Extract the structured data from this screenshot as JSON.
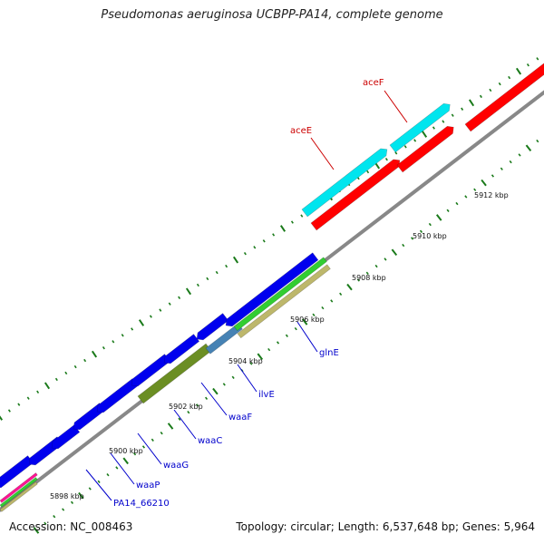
{
  "title": "Pseudomonas aeruginosa UCBPP-PA14, complete genome",
  "footer": {
    "accession": "Accession: NC_008463",
    "summary": "Topology: circular; Length: 6,537,648 bp; Genes: 5,964"
  },
  "colors": {
    "backbone": "#888888",
    "tick": "#1a7a1a",
    "forward_gene": "#ff0000",
    "forward_gene_alt": "#00e5ee",
    "reverse_gene": "#0000ee",
    "label_forward": "#cc0000",
    "label_reverse": "#0000cc"
  },
  "scale_labels": [
    "5898 kbp",
    "5900 kbp",
    "5902 kbp",
    "5904 kbp",
    "5906 kbp",
    "5908 kbp",
    "5910 kbp",
    "5912 kbp"
  ],
  "forward_genes": [
    {
      "name": "aceE",
      "color": "#00e5ee"
    },
    {
      "name": "aceF",
      "color": "#00e5ee"
    }
  ],
  "reverse_genes": [
    {
      "name": "PA14_66210"
    },
    {
      "name": "waaP"
    },
    {
      "name": "waaG"
    },
    {
      "name": "waaC"
    },
    {
      "name": "waaF"
    },
    {
      "name": "ilvE"
    },
    {
      "name": "glnE"
    }
  ]
}
